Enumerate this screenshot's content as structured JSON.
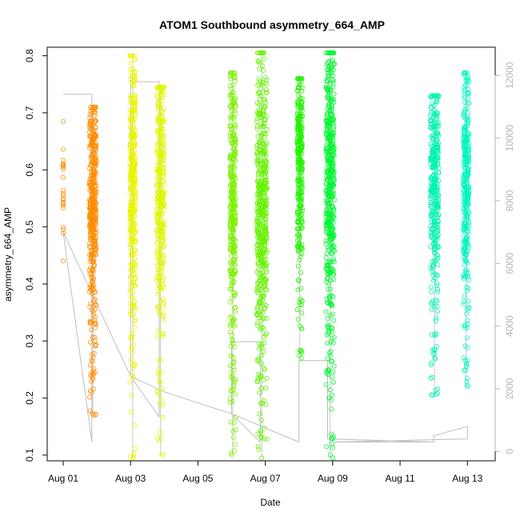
{
  "chart_data": {
    "type": "scatter",
    "title": "ATOM1 Southbound asymmetry_664_AMP",
    "xlabel": "Date",
    "ylabel": "asymmetry_664_AMP",
    "x_axis_unit": "days since Jul 31 00:00",
    "xlim": [
      1.0,
      13.35
    ],
    "ylim": [
      0.09,
      0.815
    ],
    "x_ticks": [
      {
        "value": 1,
        "label": "Aug 01"
      },
      {
        "value": 3,
        "label": "Aug 03"
      },
      {
        "value": 5,
        "label": "Aug 05"
      },
      {
        "value": 7,
        "label": "Aug 07"
      },
      {
        "value": 9,
        "label": "Aug 09"
      },
      {
        "value": 11,
        "label": "Aug 11"
      },
      {
        "value": 13,
        "label": "Aug 13"
      }
    ],
    "y_ticks": [
      {
        "value": 0.1,
        "label": "0.1"
      },
      {
        "value": 0.2,
        "label": "0.2"
      },
      {
        "value": 0.3,
        "label": "0.3"
      },
      {
        "value": 0.4,
        "label": "0.4"
      },
      {
        "value": 0.5,
        "label": "0.5"
      },
      {
        "value": 0.6,
        "label": "0.6"
      },
      {
        "value": 0.7,
        "label": "0.7"
      },
      {
        "value": 0.8,
        "label": "0.8"
      }
    ],
    "secondary_axis": {
      "side": "right",
      "color": "#b3b3b3",
      "lim": [
        -300,
        12900
      ],
      "ticks": [
        {
          "value": 0,
          "label": "0"
        },
        {
          "value": 2000,
          "label": "2000"
        },
        {
          "value": 4000,
          "label": "4000"
        },
        {
          "value": 6000,
          "label": "6000"
        },
        {
          "value": 8000,
          "label": "8000"
        },
        {
          "value": 10000,
          "label": "10000"
        },
        {
          "value": 12000,
          "label": "12000"
        }
      ],
      "line_color": "#bdbdbd",
      "line": [
        [
          1.0,
          11400
        ],
        [
          1.85,
          11400
        ],
        [
          1.85,
          300
        ],
        [
          1.85,
          300
        ],
        [
          1.0,
          7000
        ],
        [
          3.0,
          2400
        ],
        [
          3.85,
          1100
        ],
        [
          3.85,
          11800
        ],
        [
          3.0,
          11800
        ],
        [
          3.0,
          12000
        ],
        [
          3.0,
          2400
        ],
        [
          4.0,
          1900
        ],
        [
          6.0,
          1200
        ],
        [
          6.0,
          3500
        ],
        [
          6.85,
          3500
        ],
        [
          6.85,
          300
        ],
        [
          6.0,
          1200
        ],
        [
          8.0,
          300
        ],
        [
          8.0,
          2900
        ],
        [
          8.85,
          2900
        ],
        [
          8.85,
          400
        ],
        [
          12.0,
          300
        ],
        [
          12.0,
          500
        ],
        [
          13.0,
          800
        ],
        [
          13.0,
          400
        ],
        [
          9.0,
          300
        ],
        [
          12.0,
          300
        ]
      ]
    },
    "series": [
      {
        "name": "Aug 01 cluster",
        "color": "#ff8c00",
        "x_start": 1.0,
        "x_end": 1.0,
        "y_min": 0.44,
        "y_max": 0.685,
        "y_mean": 0.56,
        "n": 22
      },
      {
        "name": "Aug 01-02 cluster",
        "color": "#ff8c00",
        "x_start": 1.78,
        "x_end": 1.98,
        "y_min": 0.17,
        "y_max": 0.71,
        "y_mean": 0.55,
        "n": 420
      },
      {
        "name": "Aug 03 cluster",
        "color": "#e8f500",
        "x_start": 2.98,
        "x_end": 3.15,
        "y_min": 0.095,
        "y_max": 0.8,
        "y_mean": 0.57,
        "n": 360
      },
      {
        "name": "Aug 04 cluster",
        "color": "#ddf700",
        "x_start": 3.78,
        "x_end": 4.0,
        "y_min": 0.1,
        "y_max": 0.745,
        "y_mean": 0.57,
        "n": 360
      },
      {
        "name": "Aug 06 cluster",
        "color": "#7cf000",
        "x_start": 5.95,
        "x_end": 6.12,
        "y_min": 0.1,
        "y_max": 0.77,
        "y_mean": 0.55,
        "n": 360
      },
      {
        "name": "Aug 07 cluster",
        "color": "#66f200",
        "x_start": 6.75,
        "x_end": 7.05,
        "y_min": 0.095,
        "y_max": 0.805,
        "y_mean": 0.54,
        "n": 520
      },
      {
        "name": "Aug 08 cluster",
        "color": "#22f200",
        "x_start": 7.95,
        "x_end": 8.1,
        "y_min": 0.27,
        "y_max": 0.76,
        "y_mean": 0.62,
        "n": 300
      },
      {
        "name": "Aug 09 cluster",
        "color": "#00f530",
        "x_start": 8.8,
        "x_end": 9.05,
        "y_min": 0.095,
        "y_max": 0.805,
        "y_mean": 0.58,
        "n": 480
      },
      {
        "name": "Aug 12 cluster",
        "color": "#00f5b0",
        "x_start": 11.9,
        "x_end": 12.15,
        "y_min": 0.205,
        "y_max": 0.73,
        "y_mean": 0.58,
        "n": 380
      },
      {
        "name": "Aug 13 cluster",
        "color": "#00f5c0",
        "x_start": 12.88,
        "x_end": 13.05,
        "y_min": 0.22,
        "y_max": 0.77,
        "y_mean": 0.58,
        "n": 330
      }
    ]
  }
}
